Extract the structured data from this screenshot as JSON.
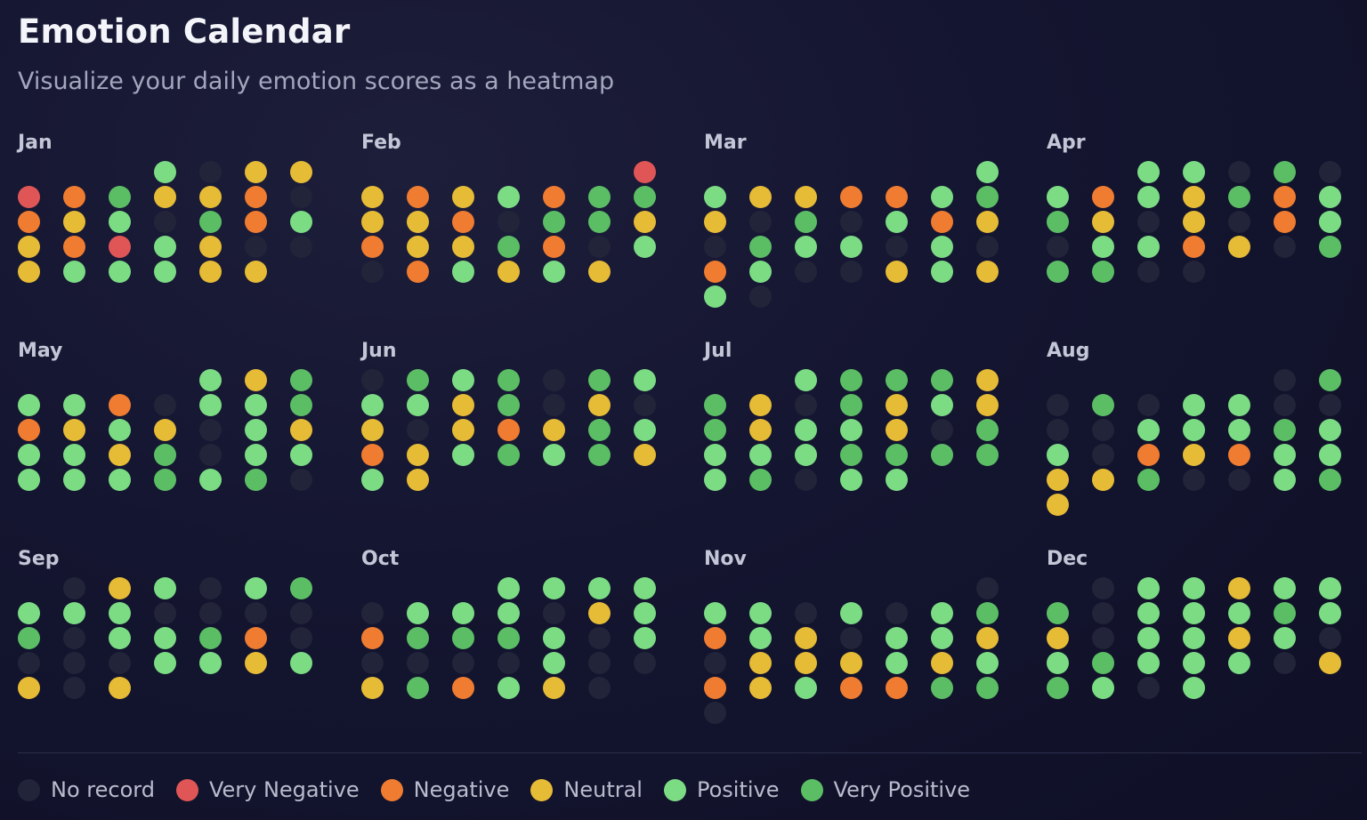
{
  "header": {
    "title": "Emotion Calendar",
    "subtitle": "Visualize your daily emotion scores as a heatmap"
  },
  "colors": {
    "0": "#22243a",
    "1": "#e05656",
    "2": "#ef7c30",
    "3": "#e6bb36",
    "4": "#7bdc84",
    "5": "#5bbe65"
  },
  "legend": [
    {
      "label": "No record",
      "level": 0
    },
    {
      "label": "Very Negative",
      "level": 1
    },
    {
      "label": "Negative",
      "level": 2
    },
    {
      "label": "Neutral",
      "level": 3
    },
    {
      "label": "Positive",
      "level": 4
    },
    {
      "label": "Very Positive",
      "level": 5
    }
  ],
  "chart_data": {
    "type": "heatmap",
    "levels": [
      "No record",
      "Very Negative",
      "Negative",
      "Neutral",
      "Positive",
      "Very Positive"
    ],
    "months": [
      {
        "name": "Jan",
        "start_weekday": 3,
        "days": [
          4,
          0,
          3,
          3,
          1,
          2,
          5,
          3,
          3,
          2,
          0,
          2,
          3,
          4,
          0,
          5,
          2,
          4,
          3,
          2,
          1,
          4,
          3,
          0,
          0,
          3,
          4,
          4,
          4,
          3,
          3
        ]
      },
      {
        "name": "Feb",
        "start_weekday": 6,
        "days": [
          1,
          3,
          2,
          3,
          4,
          2,
          5,
          5,
          3,
          3,
          2,
          0,
          5,
          5,
          3,
          2,
          3,
          3,
          5,
          2,
          0,
          4,
          0,
          2,
          4,
          3,
          4,
          3
        ]
      },
      {
        "name": "Mar",
        "start_weekday": 6,
        "days": [
          4,
          4,
          3,
          3,
          2,
          2,
          4,
          5,
          3,
          0,
          5,
          0,
          4,
          2,
          3,
          0,
          5,
          4,
          4,
          0,
          4,
          0,
          2,
          4,
          0,
          0,
          3,
          4,
          3,
          4,
          0
        ]
      },
      {
        "name": "Apr",
        "start_weekday": 2,
        "days": [
          4,
          4,
          0,
          5,
          0,
          4,
          2,
          4,
          3,
          5,
          2,
          4,
          5,
          3,
          0,
          3,
          0,
          2,
          4,
          0,
          4,
          4,
          2,
          3,
          0,
          5,
          5,
          5,
          0,
          0
        ]
      },
      {
        "name": "May",
        "start_weekday": 4,
        "days": [
          4,
          3,
          5,
          4,
          4,
          2,
          0,
          4,
          4,
          5,
          2,
          3,
          4,
          3,
          0,
          4,
          3,
          4,
          4,
          3,
          5,
          0,
          4,
          4,
          4,
          4,
          4,
          5,
          4,
          5,
          0
        ]
      },
      {
        "name": "Jun",
        "start_weekday": 0,
        "days": [
          0,
          5,
          4,
          5,
          0,
          5,
          4,
          4,
          4,
          3,
          5,
          0,
          3,
          0,
          3,
          0,
          3,
          2,
          3,
          5,
          4,
          2,
          3,
          4,
          5,
          4,
          5,
          3,
          4,
          3
        ]
      },
      {
        "name": "Jul",
        "start_weekday": 2,
        "days": [
          4,
          5,
          5,
          5,
          3,
          5,
          3,
          0,
          5,
          3,
          4,
          3,
          5,
          3,
          4,
          4,
          3,
          0,
          5,
          4,
          4,
          4,
          5,
          5,
          5,
          5,
          4,
          5,
          0,
          4,
          4
        ]
      },
      {
        "name": "Aug",
        "start_weekday": 5,
        "days": [
          0,
          5,
          0,
          5,
          0,
          4,
          4,
          0,
          0,
          0,
          0,
          4,
          4,
          4,
          5,
          4,
          4,
          0,
          2,
          3,
          2,
          4,
          4,
          3,
          3,
          5,
          0,
          0,
          4,
          5,
          3
        ]
      },
      {
        "name": "Sep",
        "start_weekday": 1,
        "days": [
          0,
          3,
          4,
          0,
          4,
          5,
          4,
          4,
          4,
          0,
          0,
          0,
          0,
          5,
          0,
          4,
          4,
          5,
          2,
          0,
          0,
          0,
          0,
          4,
          4,
          3,
          4,
          3,
          0,
          3
        ]
      },
      {
        "name": "Oct",
        "start_weekday": 3,
        "days": [
          4,
          4,
          4,
          4,
          0,
          4,
          4,
          4,
          0,
          3,
          4,
          2,
          5,
          5,
          5,
          4,
          0,
          4,
          0,
          0,
          0,
          0,
          4,
          0,
          0,
          3,
          5,
          2,
          4,
          3,
          0
        ]
      },
      {
        "name": "Nov",
        "start_weekday": 6,
        "days": [
          0,
          4,
          4,
          0,
          4,
          0,
          4,
          5,
          2,
          4,
          3,
          0,
          4,
          4,
          3,
          0,
          3,
          3,
          3,
          4,
          3,
          4,
          2,
          3,
          4,
          2,
          2,
          5,
          5,
          0
        ]
      },
      {
        "name": "Dec",
        "start_weekday": 1,
        "days": [
          0,
          4,
          4,
          3,
          4,
          4,
          5,
          0,
          4,
          4,
          4,
          5,
          4,
          3,
          0,
          4,
          4,
          3,
          4,
          0,
          4,
          5,
          4,
          4,
          4,
          0,
          3,
          5,
          4,
          0,
          4
        ]
      }
    ]
  }
}
